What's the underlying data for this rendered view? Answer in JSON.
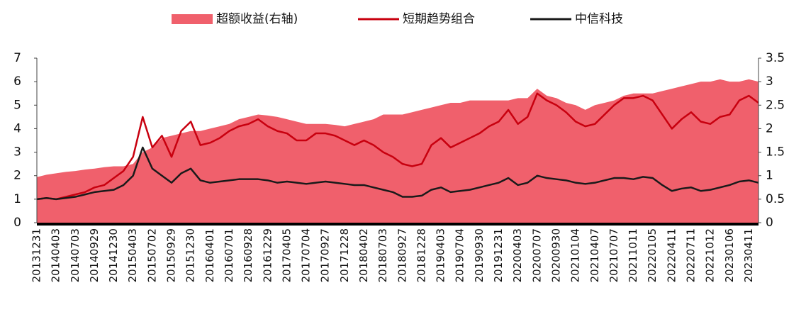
{
  "chart_data": {
    "type": "line",
    "categories": [
      "20131231",
      null,
      "20140403",
      null,
      "20140703",
      null,
      "20140929",
      null,
      "20141230",
      null,
      "20150403",
      null,
      "20150702",
      null,
      "20150929",
      null,
      "20151230",
      null,
      "20160401",
      null,
      "20160701",
      null,
      "20160928",
      null,
      "20161229",
      null,
      "20170405",
      null,
      "20170704",
      null,
      "20170927",
      null,
      "20171228",
      null,
      "20180402",
      null,
      "20180703",
      null,
      "20180927",
      null,
      "20181228",
      null,
      "20190403",
      null,
      "20190704",
      null,
      "20190930",
      null,
      "20191231",
      null,
      "20200403",
      null,
      "20200707",
      null,
      "20200930",
      null,
      "20210104",
      null,
      "20210407",
      null,
      "20210707",
      null,
      "20211011",
      null,
      "20220105",
      null,
      "20220411",
      null,
      "20220711",
      null,
      "20221012",
      null,
      "20230106",
      null,
      "20230411",
      null
    ],
    "series": [
      {
        "name": "超额收益(右轴)",
        "type": "area",
        "axis": "y2",
        "color": "#f0606c",
        "values": [
          0.97,
          1.02,
          1.05,
          1.08,
          1.1,
          1.13,
          1.15,
          1.18,
          1.2,
          1.2,
          1.25,
          1.5,
          1.6,
          1.8,
          1.85,
          1.9,
          1.95,
          1.95,
          2.0,
          2.05,
          2.1,
          2.2,
          2.25,
          2.3,
          2.28,
          2.25,
          2.2,
          2.15,
          2.1,
          2.1,
          2.1,
          2.08,
          2.05,
          2.1,
          2.15,
          2.2,
          2.3,
          2.3,
          2.3,
          2.35,
          2.4,
          2.45,
          2.5,
          2.55,
          2.55,
          2.6,
          2.6,
          2.6,
          2.6,
          2.6,
          2.65,
          2.65,
          2.85,
          2.7,
          2.65,
          2.55,
          2.5,
          2.4,
          2.5,
          2.55,
          2.6,
          2.7,
          2.75,
          2.75,
          2.75,
          2.8,
          2.85,
          2.9,
          2.95,
          3.0,
          3.0,
          3.05,
          3.0,
          3.0,
          3.05,
          3.0
        ]
      },
      {
        "name": "短期趋势组合",
        "type": "line",
        "color": "#c8000f",
        "values": [
          1.0,
          1.05,
          1.0,
          1.1,
          1.2,
          1.3,
          1.5,
          1.6,
          1.9,
          2.2,
          2.8,
          4.5,
          3.2,
          3.7,
          2.8,
          3.9,
          4.3,
          3.3,
          3.4,
          3.6,
          3.9,
          4.1,
          4.2,
          4.4,
          4.1,
          3.9,
          3.8,
          3.5,
          3.5,
          3.8,
          3.8,
          3.7,
          3.5,
          3.3,
          3.5,
          3.3,
          3.0,
          2.8,
          2.5,
          2.4,
          2.5,
          3.3,
          3.6,
          3.2,
          3.4,
          3.6,
          3.8,
          4.1,
          4.3,
          4.8,
          4.2,
          4.5,
          5.5,
          5.2,
          5.0,
          4.7,
          4.3,
          4.1,
          4.2,
          4.6,
          5.0,
          5.3,
          5.3,
          5.4,
          5.2,
          4.6,
          4.0,
          4.4,
          4.7,
          4.3,
          4.2,
          4.5,
          4.6,
          5.2,
          5.4,
          5.1
        ]
      },
      {
        "name": "中信科技",
        "type": "line",
        "color": "#1a1a1a",
        "values": [
          1.0,
          1.05,
          1.0,
          1.05,
          1.1,
          1.2,
          1.3,
          1.35,
          1.4,
          1.6,
          2.0,
          3.2,
          2.3,
          2.0,
          1.7,
          2.1,
          2.3,
          1.8,
          1.7,
          1.75,
          1.8,
          1.85,
          1.85,
          1.85,
          1.8,
          1.7,
          1.75,
          1.7,
          1.65,
          1.7,
          1.75,
          1.7,
          1.65,
          1.6,
          1.6,
          1.5,
          1.4,
          1.3,
          1.1,
          1.1,
          1.15,
          1.4,
          1.5,
          1.3,
          1.35,
          1.4,
          1.5,
          1.6,
          1.7,
          1.9,
          1.6,
          1.7,
          2.0,
          1.9,
          1.85,
          1.8,
          1.7,
          1.65,
          1.7,
          1.8,
          1.9,
          1.9,
          1.85,
          1.95,
          1.9,
          1.6,
          1.35,
          1.45,
          1.5,
          1.35,
          1.4,
          1.5,
          1.6,
          1.75,
          1.8,
          1.7
        ]
      }
    ],
    "ylim": [
      0,
      7
    ],
    "yticks": [
      0,
      1,
      2,
      3,
      4,
      5,
      6,
      7
    ],
    "y2lim": [
      0,
      3.5
    ],
    "y2ticks": [
      0,
      0.5,
      1,
      1.5,
      2,
      2.5,
      3,
      3.5
    ],
    "legend": "top"
  }
}
